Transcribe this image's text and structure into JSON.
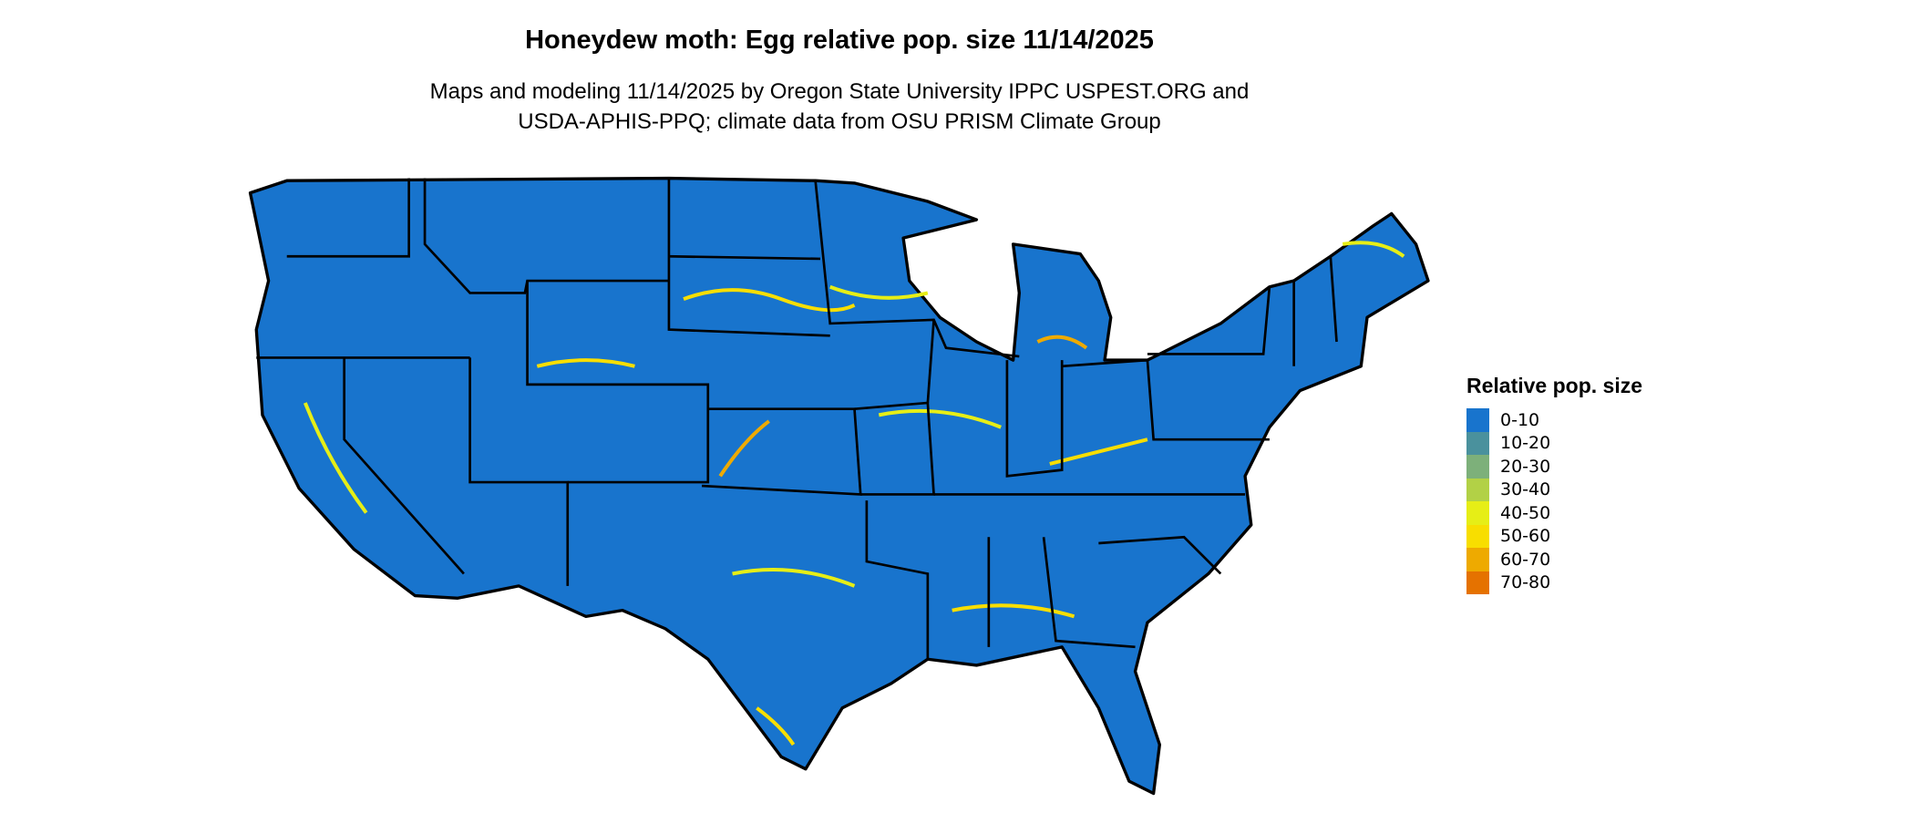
{
  "title": "Honeydew moth: Egg relative pop. size 11/14/2025",
  "subtitle_lines": [
    "Maps and modeling 11/14/2025 by Oregon State University IPPC USPEST.ORG and",
    "USDA-APHIS-PPQ; climate data from OSU PRISM Climate Group"
  ],
  "legend": {
    "title": "Relative pop. size",
    "items": [
      {
        "label": "0-10",
        "color": "#1874cd"
      },
      {
        "label": "10-20",
        "color": "#4a919d"
      },
      {
        "label": "20-30",
        "color": "#7db07a"
      },
      {
        "label": "30-40",
        "color": "#b2d146"
      },
      {
        "label": "40-50",
        "color": "#e6ee16"
      },
      {
        "label": "50-60",
        "color": "#f8de00"
      },
      {
        "label": "60-70",
        "color": "#eeaa00"
      },
      {
        "label": "70-80",
        "color": "#e57200"
      }
    ]
  }
}
